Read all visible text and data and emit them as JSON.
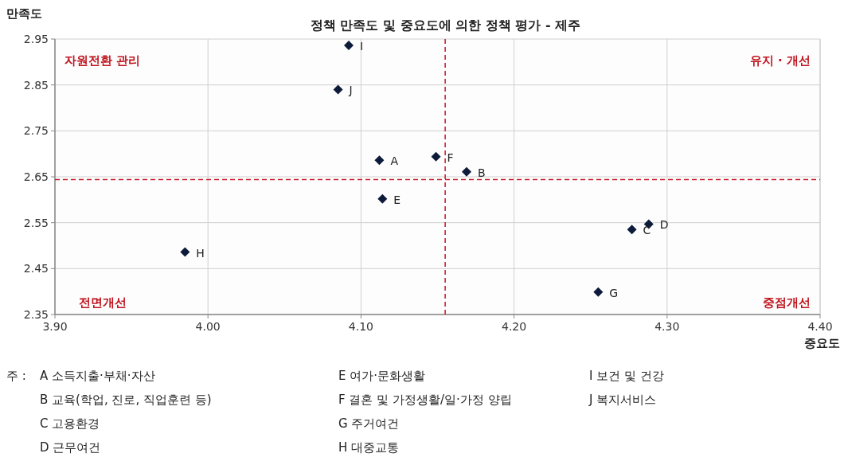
{
  "chart_data": {
    "type": "scatter",
    "title": "정책 만족도 및 중요도에 의한 정책 평가 - 제주",
    "xlabel": "중요도",
    "ylabel": "만족도",
    "series": [
      {
        "color": "#0d1b3a",
        "x": [
          4.112,
          4.169,
          4.277,
          4.288,
          4.114,
          4.149,
          4.255,
          3.985,
          4.092,
          4.085
        ],
        "values": [
          2.686,
          2.661,
          2.535,
          2.547,
          2.602,
          2.694,
          2.399,
          2.486,
          2.936,
          2.84
        ]
      }
    ],
    "marker": "diamond",
    "xlim": [
      3.9,
      4.4
    ],
    "ylim": [
      2.35,
      2.95
    ],
    "xticks": [
      {
        "value": 3.9,
        "label": "3.90"
      },
      {
        "value": 4.0,
        "label": "4.00"
      },
      {
        "value": 4.1,
        "label": "4.10"
      },
      {
        "value": 4.2,
        "label": "4.20"
      },
      {
        "value": 4.3,
        "label": "4.30"
      },
      {
        "value": 4.4,
        "label": "4.40"
      }
    ],
    "yticks": [
      2.35,
      2.45,
      2.55,
      2.65,
      2.75,
      2.85,
      2.95
    ],
    "grid": true,
    "ref_lines": [
      {
        "axis": "x",
        "value": 4.155,
        "color": "#cc2233",
        "line_style": "dashed"
      },
      {
        "axis": "y",
        "value": 2.644,
        "color": "#cc2233",
        "line_style": "dashed"
      }
    ],
    "annotations": [
      "자원전환 관리",
      "유지 · 개선",
      "전면개선",
      "중점개선",
      {
        "text": "A",
        "x": 4.112,
        "y": 2.686
      },
      {
        "text": "B",
        "x": 4.169,
        "y": 2.661
      },
      {
        "text": "C",
        "x": 4.277,
        "y": 2.535
      },
      {
        "text": "D",
        "x": 4.288,
        "y": 2.547
      },
      {
        "text": "E",
        "x": 4.114,
        "y": 2.602
      },
      {
        "text": "F",
        "x": 4.149,
        "y": 2.694
      },
      {
        "text": "G",
        "x": 4.255,
        "y": 2.399
      },
      {
        "text": "H",
        "x": 3.985,
        "y": 2.486
      },
      {
        "text": "I",
        "x": 4.092,
        "y": 2.936
      },
      {
        "text": "J",
        "x": 4.085,
        "y": 2.84
      },
      "주 :",
      "A 소득지출·부채·자산",
      "B 교육(학업, 진로, 직업훈련 등)",
      "C 고용환경",
      "D 근무여건",
      "E 여가·문화생활",
      "F 결혼 및 가정생활/일·가정 양립",
      "G 주거여건",
      "H 대중교통",
      "I 보건 및 건강",
      "J 복지서비스"
    ]
  }
}
